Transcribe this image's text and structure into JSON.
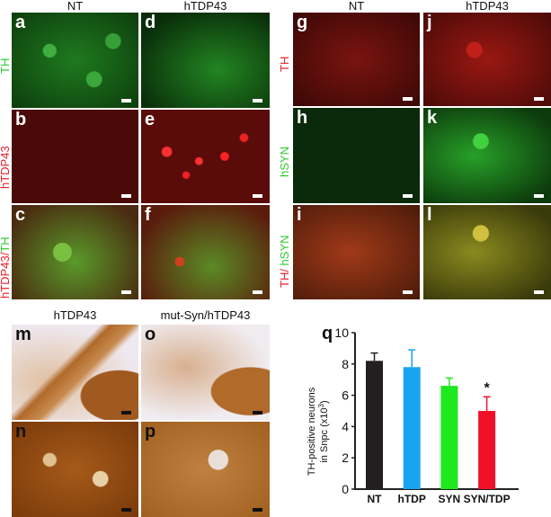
{
  "top_left": {
    "columns": [
      "NT",
      "hTDP43"
    ],
    "row_labels": [
      {
        "text": "TH",
        "color": "#2ecc2e"
      },
      {
        "text": "hTDP43",
        "color": "#e8202a"
      },
      {
        "parts": [
          {
            "text": "hTDP43/",
            "color": "#e8202a"
          },
          {
            "text": "TH",
            "color": "#2ecc2e"
          }
        ]
      }
    ],
    "panels": [
      "a",
      "d",
      "b",
      "e",
      "c",
      "f"
    ]
  },
  "top_right": {
    "columns": [
      "NT",
      "hTDP43"
    ],
    "row_labels": [
      {
        "text": "TH",
        "color": "#e8202a"
      },
      {
        "text": "hSYN",
        "color": "#2ecc2e"
      },
      {
        "parts": [
          {
            "text": "TH/ ",
            "color": "#e8202a"
          },
          {
            "text": "hSYN",
            "color": "#2ecc2e"
          }
        ]
      }
    ],
    "panels": [
      "g",
      "j",
      "h",
      "k",
      "i",
      "l"
    ]
  },
  "bottom_left": {
    "columns": [
      "hTDP43",
      "mut-Syn/hTDP43"
    ],
    "panels": [
      "m",
      "o",
      "n",
      "p"
    ]
  },
  "chart_panel_label": "q",
  "chart_data": {
    "type": "bar",
    "categories": [
      "NT",
      "hTDP",
      "SYN",
      "SYN/TDP"
    ],
    "values": [
      8.2,
      7.8,
      6.6,
      5.0
    ],
    "error_upper": [
      8.7,
      8.9,
      7.1,
      5.9
    ],
    "colors": [
      "#231f20",
      "#1aa3f0",
      "#1ee81e",
      "#f0102a"
    ],
    "ylabel_line1": "TH-positive neurons",
    "ylabel_line2": "in Snpc (x10",
    "ylabel_sup": "3",
    "ylabel_end": ")",
    "ylim": [
      0,
      10
    ],
    "yticks": [
      "0",
      "2",
      "4",
      "6",
      "8",
      "10"
    ],
    "annotations": [
      {
        "category": "SYN/TDP",
        "text": "*"
      }
    ],
    "grid": false
  }
}
